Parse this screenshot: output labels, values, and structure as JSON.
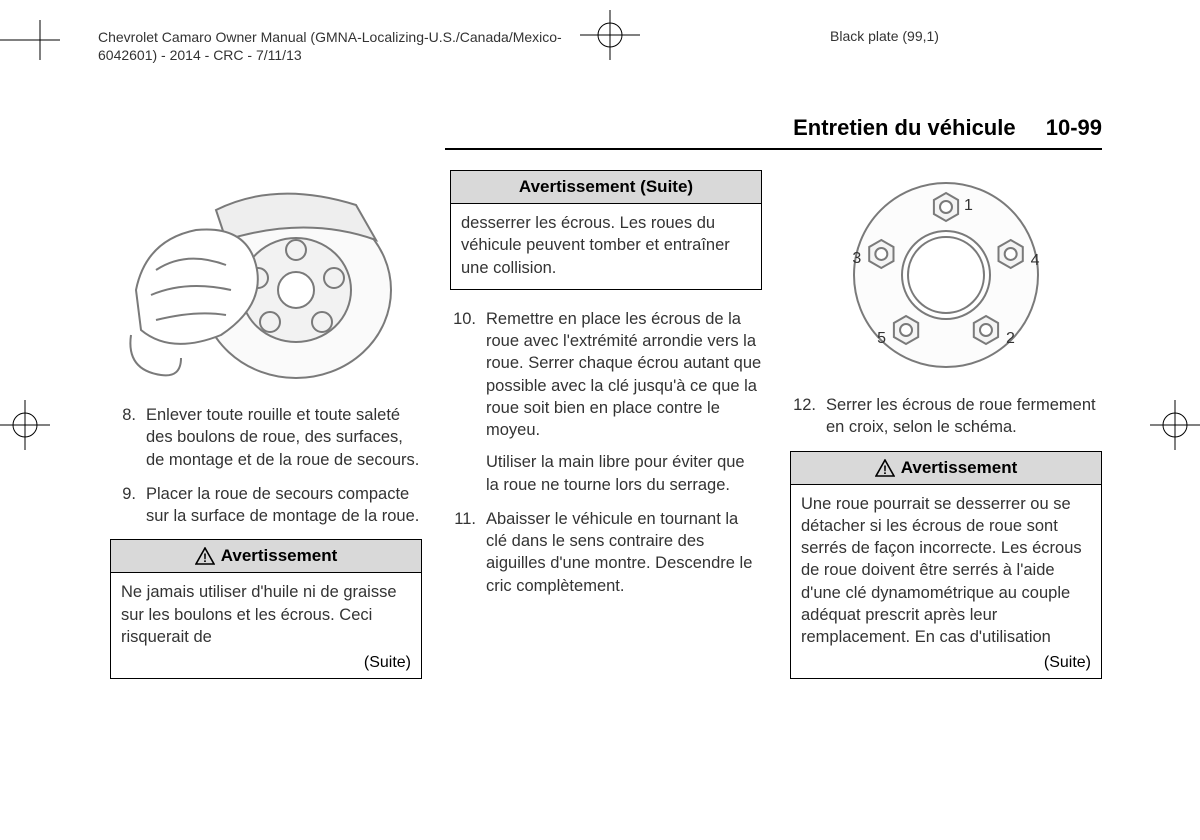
{
  "header": {
    "line1": "Chevrolet Camaro Owner Manual (GMNA-Localizing-U.S./Canada/Mexico-",
    "line2": "6042601) - 2014 - CRC - 7/11/13",
    "plate": "Black plate (99,1)"
  },
  "section": {
    "title": "Entretien du véhicule",
    "number": "10-99"
  },
  "col1": {
    "items": [
      {
        "n": "8.",
        "t": "Enlever toute rouille et toute saleté des boulons de roue, des surfaces, de montage et de la roue de secours."
      },
      {
        "n": "9.",
        "t": "Placer la roue de secours compacte sur la surface de montage de la roue."
      }
    ],
    "warn": {
      "title": "Avertissement",
      "body": "Ne jamais utiliser d'huile ni de graisse sur les boulons et les écrous. Ceci risquerait de",
      "suite": "(Suite)"
    },
    "figure": {
      "stroke": "#7a7a7a",
      "fill": "#f2f2f2"
    }
  },
  "col2": {
    "warn_cont": {
      "title": "Avertissement (Suite)",
      "body": "desserrer les écrous. Les roues du véhicule peuvent tomber et entraîner une collision."
    },
    "items": [
      {
        "n": "10.",
        "t": "Remettre en place les écrous de la roue avec l'extrémité arrondie vers la roue. Serrer chaque écrou autant que possible avec la clé jusqu'à ce que la roue soit bien en place contre le moyeu.",
        "sub": "Utiliser la main libre pour éviter que la roue ne tourne lors du serrage."
      },
      {
        "n": "11.",
        "t": "Abaisser le véhicule en tournant la clé dans le sens contraire des aiguilles d'une montre. Descendre le cric complètement."
      }
    ]
  },
  "col3": {
    "items": [
      {
        "n": "12.",
        "t": "Serrer les écrous de roue fermement en croix, selon le schéma."
      }
    ],
    "warn": {
      "title": "Avertissement",
      "body": "Une roue pourrait se desserrer ou se détacher si les écrous de roue sont serrés de façon incorrecte. Les écrous de roue doivent être serrés à l'aide d'une clé dynamométrique au couple adéquat prescrit après leur remplacement. En cas d'utilisation",
      "suite": "(Suite)"
    },
    "lug": {
      "labels": [
        "1",
        "2",
        "3",
        "4",
        "5"
      ],
      "stroke": "#7a7a7a",
      "fill": "#e8e8e8",
      "text_color": "#333"
    }
  },
  "colors": {
    "text": "#333333",
    "rule": "#000000",
    "grey_fill": "#d9d9d9"
  }
}
